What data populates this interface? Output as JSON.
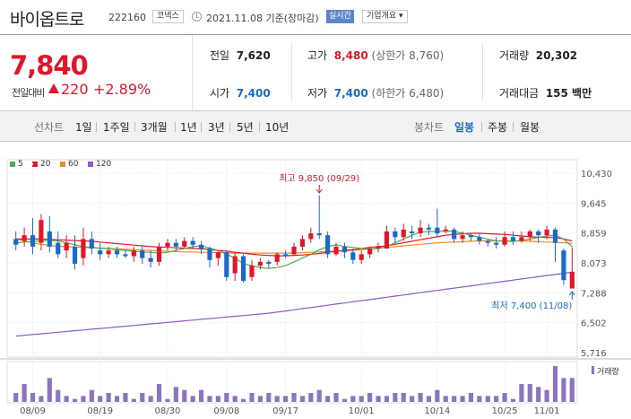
{
  "header": {
    "name": "바이옵트로",
    "code": "222160",
    "market_badge": "코넥스",
    "date_text": "2021.11.08 기준(장마감)",
    "realtime_button": "실시간",
    "info_button": "기업개요 ▾"
  },
  "price": {
    "current": "7,840",
    "diff_label": "전일대비",
    "diff": "220",
    "pct": "+2.89%"
  },
  "stats": {
    "prev_label": "전일",
    "prev": "7,620",
    "high_label": "고가",
    "high": "8,480",
    "upper_limit": "(상한가 8,760)",
    "volume_label": "거래량",
    "volume": "20,302",
    "open_label": "시가",
    "open": "7,400",
    "low_label": "저가",
    "low": "7,400",
    "lower_limit": "(하한가 6,480)",
    "amount_label": "거래대금",
    "amount": "155 백만"
  },
  "period_tabs": {
    "label": "선차트",
    "items": [
      "1일",
      "1주일",
      "3개월",
      "1년",
      "3년",
      "5년",
      "10년"
    ]
  },
  "candle_tabs": {
    "label": "봉차트",
    "items": [
      "일봉",
      "주봉",
      "월봉"
    ],
    "active": "일봉"
  },
  "chart_data": {
    "type": "candlestick",
    "legend": [
      {
        "name": "5",
        "color": "#4cae4c"
      },
      {
        "name": "20",
        "color": "#e0162a"
      },
      {
        "name": "60",
        "color": "#f08a24"
      },
      {
        "name": "120",
        "color": "#8c5cc4"
      }
    ],
    "y_ticks": [
      "10,430",
      "9,645",
      "8,859",
      "8,073",
      "7,288",
      "6,502",
      "5,716"
    ],
    "y_range": [
      5716,
      10430
    ],
    "x_ticks": [
      "08/09",
      "08/19",
      "08/30",
      "09/08",
      "09/17",
      "10/01",
      "10/14",
      "10/25",
      "11/01"
    ],
    "high_annotation": "최고 9,850 (09/29)",
    "low_annotation": "최저 7,400 (11/08)",
    "volume_label": "거래량",
    "candles": [
      [
        8700,
        8550,
        8900,
        8400
      ],
      [
        8650,
        8800,
        9000,
        8500
      ],
      [
        8800,
        8500,
        9250,
        8300
      ],
      [
        8600,
        9200,
        9350,
        8400
      ],
      [
        8900,
        8500,
        9300,
        8350
      ],
      [
        8600,
        8300,
        8900,
        8200
      ],
      [
        8400,
        8600,
        8800,
        8200
      ],
      [
        8500,
        8050,
        8800,
        7900
      ],
      [
        8200,
        8700,
        9000,
        8000
      ],
      [
        8700,
        8450,
        8900,
        8300
      ],
      [
        8400,
        8300,
        8600,
        8150
      ],
      [
        8300,
        8400,
        8500,
        8200
      ],
      [
        8400,
        8300,
        8500,
        8200
      ],
      [
        8300,
        8250,
        8400,
        8200
      ],
      [
        8250,
        8400,
        8500,
        8100
      ],
      [
        8400,
        8200,
        8500,
        8050
      ],
      [
        8200,
        8100,
        8400,
        7950
      ],
      [
        8100,
        8500,
        8600,
        8000
      ],
      [
        8500,
        8600,
        8700,
        8400
      ],
      [
        8600,
        8500,
        8700,
        8400
      ],
      [
        8500,
        8650,
        8750,
        8450
      ],
      [
        8650,
        8550,
        8750,
        8450
      ],
      [
        8550,
        8450,
        8650,
        8300
      ],
      [
        8450,
        8150,
        8500,
        7950
      ],
      [
        8200,
        8350,
        8400,
        8000
      ],
      [
        8350,
        7700,
        8400,
        7600
      ],
      [
        7800,
        8250,
        8350,
        7600
      ],
      [
        8250,
        7600,
        8300,
        7550
      ],
      [
        7700,
        8000,
        8150,
        7600
      ],
      [
        8000,
        8100,
        8200,
        7900
      ],
      [
        8100,
        8050,
        8150,
        7950
      ],
      [
        8100,
        8300,
        8350,
        8000
      ],
      [
        8300,
        8250,
        8400,
        8200
      ],
      [
        8300,
        8500,
        8600,
        8250
      ],
      [
        8500,
        8700,
        8800,
        8400
      ],
      [
        8700,
        8850,
        9000,
        8600
      ],
      [
        8850,
        8800,
        9850,
        8700
      ],
      [
        8800,
        8300,
        8900,
        8200
      ],
      [
        8300,
        8500,
        8600,
        8250
      ],
      [
        8500,
        8350,
        8600,
        8200
      ],
      [
        8350,
        8150,
        8450,
        8050
      ],
      [
        8150,
        8300,
        8400,
        8050
      ],
      [
        8300,
        8450,
        8500,
        8200
      ],
      [
        8450,
        8500,
        8600,
        8350
      ],
      [
        8450,
        8900,
        9050,
        8600
      ],
      [
        8900,
        8750,
        9000,
        8600
      ],
      [
        8750,
        8950,
        9100,
        8650
      ],
      [
        8900,
        8850,
        9050,
        8700
      ],
      [
        8850,
        9000,
        9200,
        8750
      ],
      [
        9000,
        8950,
        9100,
        8800
      ],
      [
        9000,
        8850,
        9500,
        8750
      ],
      [
        8900,
        8950,
        9050,
        8850
      ],
      [
        8950,
        8700,
        9000,
        8600
      ],
      [
        8700,
        8800,
        8900,
        8600
      ],
      [
        8800,
        8750,
        8850,
        8650
      ],
      [
        8750,
        8650,
        8850,
        8550
      ],
      [
        8650,
        8600,
        8700,
        8500
      ],
      [
        8600,
        8550,
        8750,
        8450
      ],
      [
        8550,
        8750,
        8900,
        8500
      ],
      [
        8750,
        8650,
        8900,
        8550
      ],
      [
        8650,
        8750,
        8900,
        8600
      ],
      [
        8750,
        8900,
        8950,
        8650
      ],
      [
        8900,
        8800,
        8950,
        8600
      ],
      [
        8800,
        8950,
        9050,
        8700
      ],
      [
        8950,
        8600,
        9000,
        8100
      ],
      [
        8400,
        7620,
        8450,
        7500
      ],
      [
        7400,
        7840,
        8480,
        7400
      ]
    ],
    "volumes": [
      3,
      6,
      3,
      2,
      8,
      4,
      2,
      1,
      2,
      4,
      2,
      3,
      2,
      3,
      1,
      3,
      2,
      6,
      1,
      5,
      4,
      2,
      4,
      2,
      2,
      3,
      2,
      1,
      3,
      2,
      3,
      2,
      2,
      3,
      2,
      3,
      4,
      2,
      3,
      1,
      2,
      2,
      3,
      2,
      2,
      3,
      3,
      2,
      3,
      2,
      4,
      2,
      2,
      2,
      3,
      2,
      2,
      2,
      3,
      1,
      6,
      6,
      5,
      4,
      12,
      8,
      8
    ],
    "ma5": [
      8600,
      8620,
      8640,
      8650,
      8670,
      8650,
      8600,
      8550,
      8500,
      8480,
      8460,
      8440,
      8420,
      8400,
      8380,
      8360,
      8350,
      8330,
      8350,
      8400,
      8450,
      8500,
      8520,
      8460,
      8400,
      8300,
      8200,
      8050,
      8000,
      7950,
      7930,
      7950,
      8000,
      8100,
      8200,
      8300,
      8420,
      8500,
      8550,
      8500,
      8480,
      8450,
      8440,
      8450,
      8500,
      8600,
      8700,
      8800,
      8880,
      8900,
      8900,
      8910,
      8900,
      8850,
      8800,
      8750,
      8700,
      8650,
      8640,
      8640,
      8660,
      8700,
      8740,
      8780,
      8800,
      8700,
      8500
    ],
    "ma20": [
      8700,
      8700,
      8700,
      8700,
      8690,
      8680,
      8670,
      8660,
      8650,
      8640,
      8620,
      8600,
      8580,
      8560,
      8540,
      8520,
      8500,
      8490,
      8480,
      8470,
      8460,
      8450,
      8440,
      8430,
      8400,
      8380,
      8350,
      8330,
      8300,
      8280,
      8270,
      8260,
      8260,
      8270,
      8280,
      8300,
      8320,
      8350,
      8380,
      8400,
      8420,
      8450,
      8480,
      8500,
      8520,
      8560,
      8600,
      8640,
      8680,
      8720,
      8760,
      8800,
      8820,
      8840,
      8850,
      8850,
      8840,
      8830,
      8820,
      8800,
      8780,
      8760,
      8750,
      8740,
      8740,
      8700,
      8650
    ],
    "ma60": [
      8700,
      8650,
      8600,
      8560,
      8530,
      8510,
      8500,
      8490,
      8480,
      8470,
      8460,
      8450,
      8440,
      8430,
      8420,
      8410,
      8400,
      8390,
      8380,
      8370,
      8360,
      8360,
      8350,
      8350,
      8340,
      8340,
      8330,
      8330,
      8330,
      8330,
      8330,
      8330,
      8330,
      8330,
      8340,
      8350,
      8360,
      8370,
      8380,
      8390,
      8400,
      8420,
      8440,
      8460,
      8480,
      8500,
      8520,
      8540,
      8560,
      8580,
      8600,
      8610,
      8620,
      8630,
      8640,
      8650,
      8650,
      8650,
      8650,
      8650,
      8650,
      8640,
      8630,
      8620,
      8610,
      8600,
      8590
    ],
    "ma120": [
      6150,
      6170,
      6190,
      6210,
      6230,
      6250,
      6270,
      6290,
      6310,
      6330,
      6350,
      6370,
      6390,
      6410,
      6430,
      6450,
      6470,
      6490,
      6510,
      6530,
      6550,
      6570,
      6590,
      6610,
      6630,
      6650,
      6670,
      6690,
      6710,
      6730,
      6750,
      6780,
      6810,
      6840,
      6870,
      6900,
      6930,
      6960,
      6990,
      7020,
      7050,
      7080,
      7110,
      7140,
      7170,
      7200,
      7230,
      7260,
      7290,
      7320,
      7350,
      7380,
      7410,
      7440,
      7470,
      7500,
      7530,
      7560,
      7590,
      7620,
      7650,
      7680,
      7710,
      7740,
      7770,
      7800,
      7830
    ]
  },
  "colors": {
    "up": "#e0162a",
    "down": "#1b6ac9",
    "accent": "#5c86c9"
  }
}
